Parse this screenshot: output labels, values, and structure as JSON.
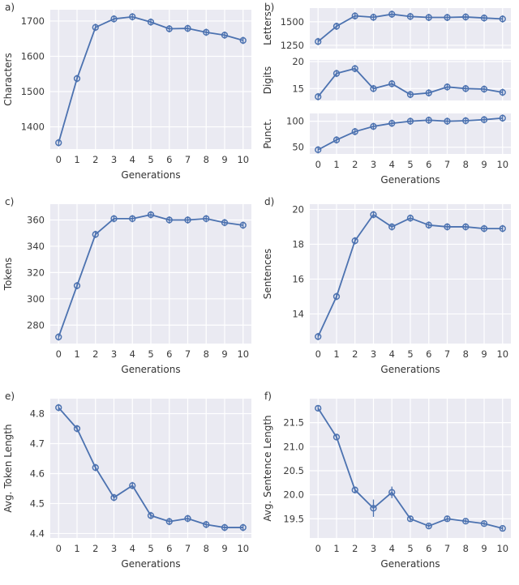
{
  "figure": {
    "background": "#ffffff",
    "panel_bg": "#eaeaf2",
    "grid_color": "#ffffff",
    "line_color": "#4c72b0",
    "text_color": "#333333"
  },
  "panels": {
    "a": "a)",
    "b": "b)",
    "c": "c)",
    "d": "d)",
    "e": "e)",
    "f": "f)"
  },
  "chart_data": [
    {
      "id": "a",
      "type": "line",
      "title": "",
      "x": [
        0,
        1,
        2,
        3,
        4,
        5,
        6,
        7,
        8,
        9,
        10
      ],
      "values": [
        1355,
        1537,
        1682,
        1706,
        1712,
        1697,
        1678,
        1679,
        1668,
        1660,
        1645
      ],
      "xlabel": "Generations",
      "ylabel": "Characters",
      "xlim": [
        -0.45,
        10.45
      ],
      "ylim": [
        1337,
        1732
      ],
      "yticks": [
        1400,
        1500,
        1600,
        1700
      ],
      "ytick_labels": [
        "1400",
        "1500",
        "1600",
        "1700"
      ],
      "show_xticks": true,
      "grid": true
    },
    {
      "id": "b-letters",
      "type": "line",
      "title": "",
      "x": [
        0,
        1,
        2,
        3,
        4,
        5,
        6,
        7,
        8,
        9,
        10
      ],
      "values": [
        1290,
        1452,
        1562,
        1548,
        1580,
        1556,
        1546,
        1546,
        1551,
        1540,
        1530
      ],
      "xlabel": "",
      "ylabel": "Letters",
      "xlim": [
        -0.45,
        10.45
      ],
      "ylim": [
        1215,
        1645
      ],
      "yticks": [
        1250,
        1500
      ],
      "ytick_labels": [
        "1250",
        "1500"
      ],
      "show_xticks": false,
      "grid": true
    },
    {
      "id": "b-digits",
      "type": "line",
      "title": "",
      "x": [
        0,
        1,
        2,
        3,
        4,
        5,
        6,
        7,
        8,
        9,
        10
      ],
      "values": [
        13.5,
        17.8,
        18.7,
        15.0,
        15.9,
        13.9,
        14.2,
        15.3,
        15.0,
        14.9,
        14.3
      ],
      "xlabel": "",
      "ylabel": "Digits",
      "xlim": [
        -0.45,
        10.45
      ],
      "ylim": [
        12.8,
        20.3
      ],
      "yticks": [
        15,
        20
      ],
      "ytick_labels": [
        "15",
        "20"
      ],
      "show_xticks": false,
      "grid": true
    },
    {
      "id": "b-punct",
      "type": "line",
      "title": "",
      "x": [
        0,
        1,
        2,
        3,
        4,
        5,
        6,
        7,
        8,
        9,
        10
      ],
      "values": [
        45,
        64,
        80,
        90,
        96,
        100,
        102,
        100,
        101,
        103,
        106
      ],
      "xlabel": "Generations",
      "ylabel": "Punct.",
      "xlim": [
        -0.45,
        10.45
      ],
      "ylim": [
        37,
        115
      ],
      "yticks": [
        50,
        100
      ],
      "ytick_labels": [
        "50",
        "100"
      ],
      "show_xticks": true,
      "grid": true
    },
    {
      "id": "c",
      "type": "line",
      "title": "",
      "x": [
        0,
        1,
        2,
        3,
        4,
        5,
        6,
        7,
        8,
        9,
        10
      ],
      "values": [
        271,
        310,
        349,
        361,
        361,
        364,
        360,
        360,
        361,
        358,
        356
      ],
      "xlabel": "Generations",
      "ylabel": "Tokens",
      "xlim": [
        -0.45,
        10.45
      ],
      "ylim": [
        266,
        372
      ],
      "yticks": [
        280,
        300,
        320,
        340,
        360
      ],
      "ytick_labels": [
        "280",
        "300",
        "320",
        "340",
        "360"
      ],
      "show_xticks": true,
      "grid": true
    },
    {
      "id": "d",
      "type": "line",
      "title": "",
      "x": [
        0,
        1,
        2,
        3,
        4,
        5,
        6,
        7,
        8,
        9,
        10
      ],
      "values": [
        12.7,
        15.0,
        18.2,
        19.7,
        19.0,
        19.5,
        19.1,
        19.0,
        19.0,
        18.9,
        18.9
      ],
      "xlabel": "Generations",
      "ylabel": "Sentences",
      "xlim": [
        -0.45,
        10.45
      ],
      "ylim": [
        12.3,
        20.3
      ],
      "yticks": [
        14,
        16,
        18,
        20
      ],
      "ytick_labels": [
        "14",
        "16",
        "18",
        "20"
      ],
      "show_xticks": true,
      "grid": true
    },
    {
      "id": "e",
      "type": "line",
      "title": "",
      "x": [
        0,
        1,
        2,
        3,
        4,
        5,
        6,
        7,
        8,
        9,
        10
      ],
      "values": [
        4.82,
        4.75,
        4.62,
        4.52,
        4.56,
        4.46,
        4.44,
        4.45,
        4.43,
        4.42,
        4.42
      ],
      "xlabel": "Generations",
      "ylabel": "Avg. Token Length",
      "xlim": [
        -0.45,
        10.45
      ],
      "ylim": [
        4.385,
        4.85
      ],
      "yticks": [
        4.4,
        4.5,
        4.6,
        4.7,
        4.8
      ],
      "ytick_labels": [
        "4.4",
        "4.5",
        "4.6",
        "4.7",
        "4.8"
      ],
      "show_xticks": true,
      "grid": true
    },
    {
      "id": "f",
      "type": "line",
      "title": "",
      "x": [
        0,
        1,
        2,
        3,
        4,
        5,
        6,
        7,
        8,
        9,
        10
      ],
      "values": [
        21.8,
        21.2,
        20.1,
        19.72,
        20.05,
        19.5,
        19.35,
        19.5,
        19.45,
        19.4,
        19.3
      ],
      "yerr": [
        0.05,
        0.05,
        0.07,
        0.18,
        0.12,
        0.05,
        0.04,
        0.05,
        0.04,
        0.04,
        0.04
      ],
      "xlabel": "Generations",
      "ylabel": "Avg. Sentence Length",
      "xlim": [
        -0.45,
        10.45
      ],
      "ylim": [
        19.1,
        22.0
      ],
      "yticks": [
        19.5,
        20.0,
        20.5,
        21.0,
        21.5
      ],
      "ytick_labels": [
        "19.5",
        "20.0",
        "20.5",
        "21.0",
        "21.5"
      ],
      "show_xticks": true,
      "grid": true
    }
  ]
}
